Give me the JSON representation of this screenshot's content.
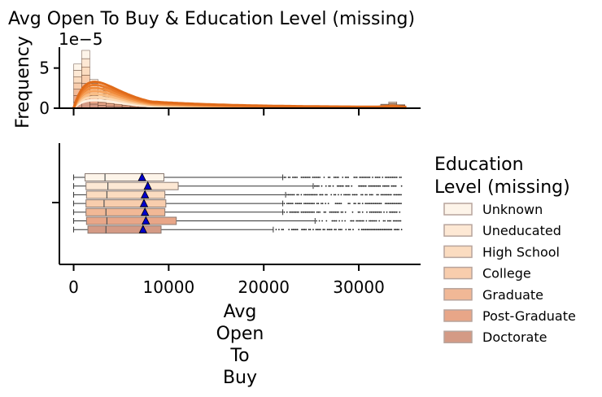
{
  "chart_data": {
    "type": "histogram-boxplot",
    "title": "Avg Open To Buy & Education Level (missing)",
    "hist": {
      "ylabel": "Frequency",
      "offset_text": "1e−5",
      "yticks": [
        0,
        5
      ],
      "ylim": [
        0,
        7.6
      ],
      "xlim": [
        -1500,
        36500
      ],
      "bin_width": 850,
      "bins_start": 0,
      "stacked_heights_1e5": [
        5.5,
        7.2,
        3.6,
        2.5,
        1.9,
        1.5,
        1.25,
        1.05,
        0.9,
        0.8,
        0.7,
        0.62,
        0.56,
        0.5,
        0.45,
        0.4,
        0.36,
        0.33,
        0.3,
        0.28,
        0.26,
        0.24,
        0.22,
        0.2,
        0.18,
        0.17,
        0.16,
        0.15,
        0.14,
        0.13,
        0.12,
        0.11,
        0.1,
        0.1,
        0.1,
        0.1,
        0.1,
        0.2,
        0.5,
        0.8,
        0.45
      ]
    },
    "box": {
      "xlabel": "Avg Open To Buy",
      "xticks": [
        0,
        10000,
        20000,
        30000
      ],
      "xlim": [
        -1500,
        36500
      ],
      "categories": [
        "Unknown",
        "Uneducated",
        "High School",
        "College",
        "Graduate",
        "Post-Graduate",
        "Doctorate"
      ],
      "stats": [
        {
          "whislo": 0,
          "q1": 1200,
          "med": 3300,
          "q3": 9500,
          "whishi": 22000,
          "mean": 7200,
          "outliers_from": 22000
        },
        {
          "whislo": 0,
          "q1": 1300,
          "med": 3600,
          "q3": 11000,
          "whishi": 25200,
          "mean": 7800,
          "outliers_from": 25200
        },
        {
          "whislo": 0,
          "q1": 1350,
          "med": 3500,
          "q3": 9600,
          "whishi": 22300,
          "mean": 7500,
          "outliers_from": 22300
        },
        {
          "whislo": 0,
          "q1": 1300,
          "med": 3200,
          "q3": 9700,
          "whishi": 22000,
          "mean": 7400,
          "outliers_from": 22000
        },
        {
          "whislo": 0,
          "q1": 1300,
          "med": 3400,
          "q3": 9600,
          "whishi": 22000,
          "mean": 7500,
          "outliers_from": 22000
        },
        {
          "whislo": 0,
          "q1": 1350,
          "med": 3500,
          "q3": 10800,
          "whishi": 25400,
          "mean": 7600,
          "outliers_from": 25400
        },
        {
          "whislo": 0,
          "q1": 1500,
          "med": 3400,
          "q3": 9200,
          "whishi": 21000,
          "mean": 7300,
          "outliers_from": 21000
        }
      ],
      "outlier_max": 34500
    },
    "legend": {
      "title_lines": [
        "Education",
        "Level (missing)"
      ],
      "placement": "right",
      "entries": [
        "Unknown",
        "Uneducated",
        "High School",
        "College",
        "Graduate",
        "Post-Graduate",
        "Doctorate"
      ]
    },
    "colors": [
      "#fdf4e9",
      "#fde8d4",
      "#fbdcc0",
      "#f8cdad",
      "#f1b896",
      "#e8a688",
      "#d49a85"
    ],
    "kde_colors": [
      "#fdf0e0",
      "#fbd8b2",
      "#f9be85",
      "#f6a35d",
      "#f08b3c",
      "#e97a2a",
      "#e06b1a"
    ],
    "mean_marker_color": "#0000cc"
  }
}
